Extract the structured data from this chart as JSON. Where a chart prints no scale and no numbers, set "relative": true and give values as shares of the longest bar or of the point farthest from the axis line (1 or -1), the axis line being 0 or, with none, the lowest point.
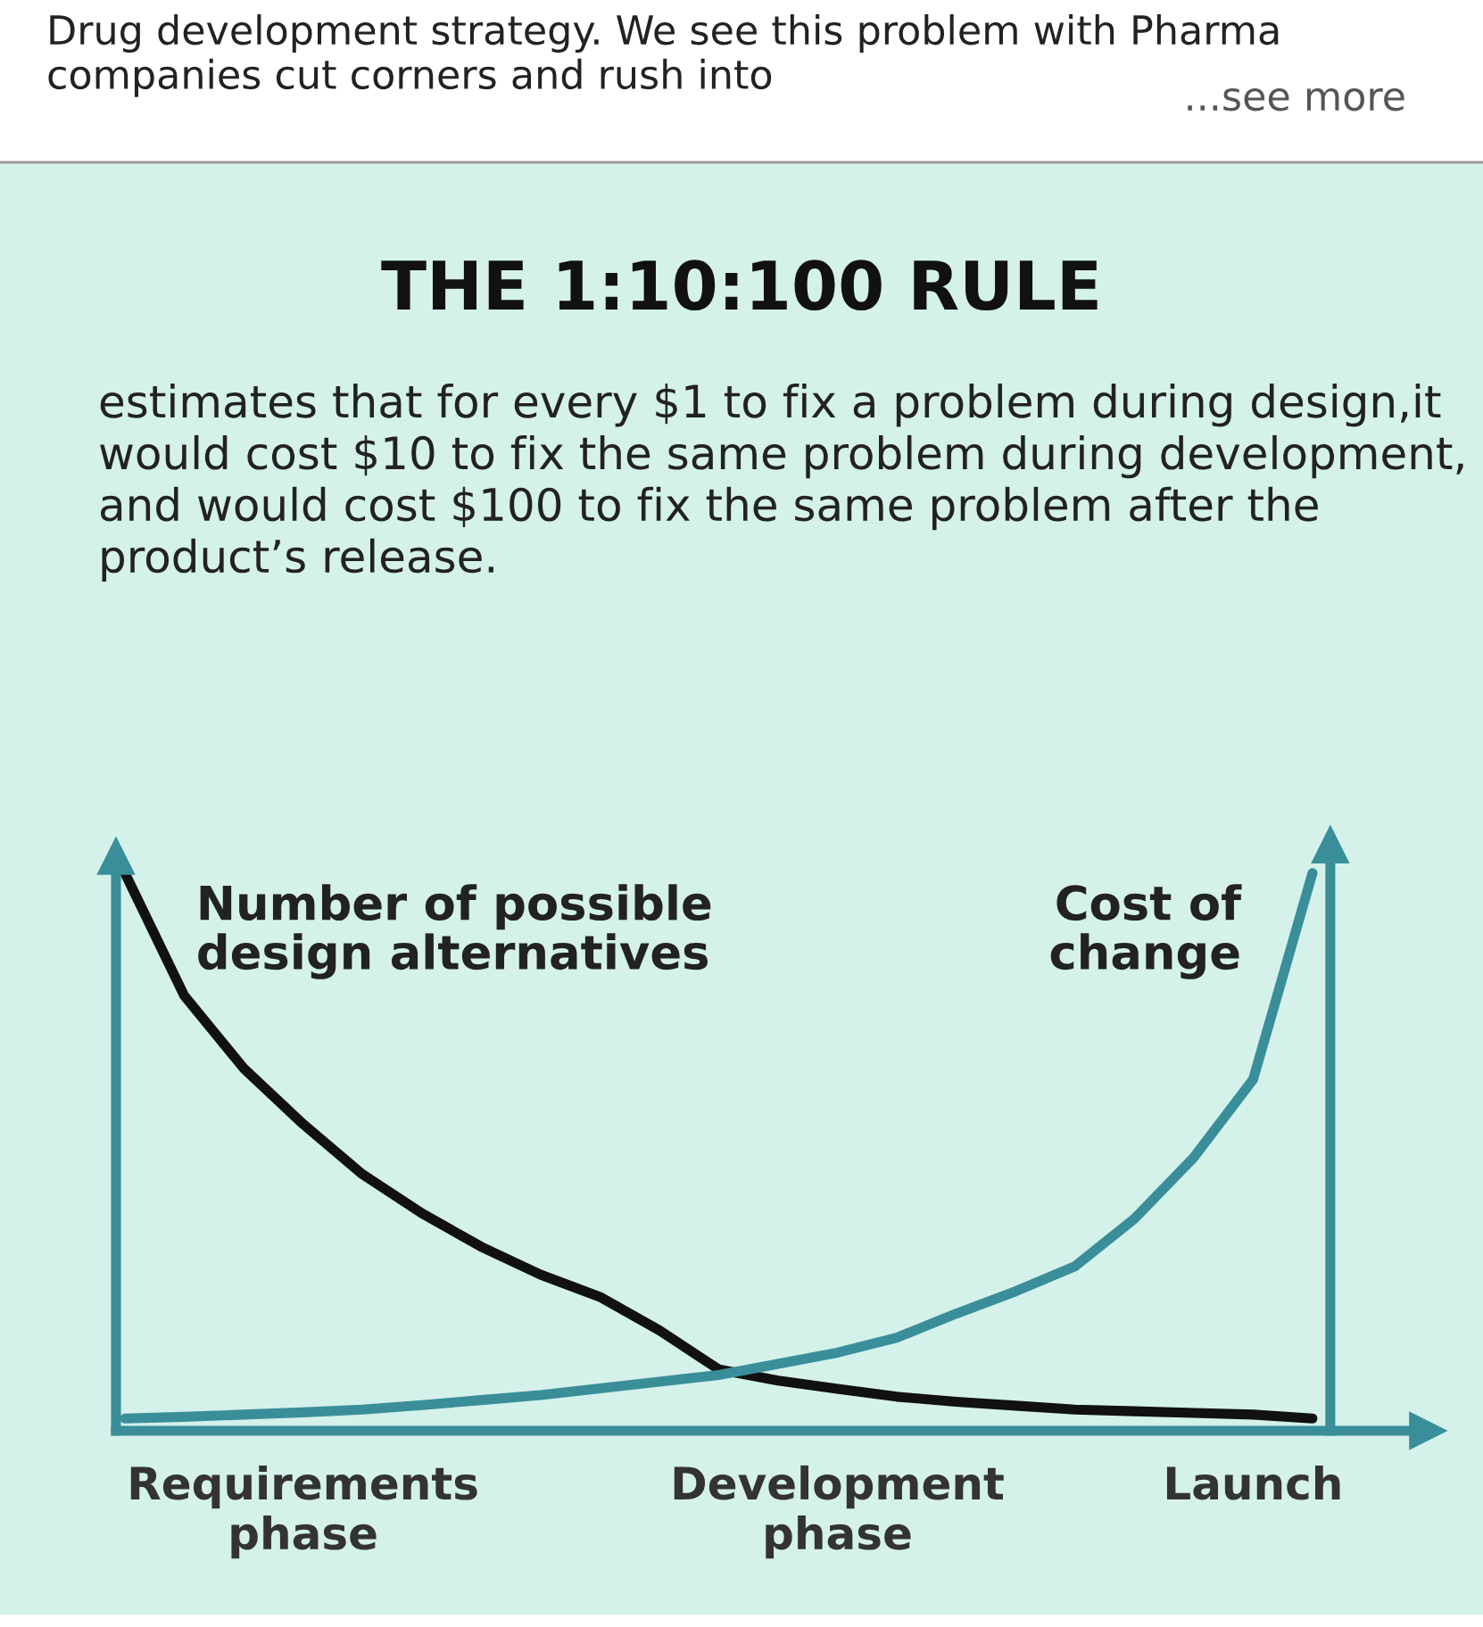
{
  "chart_data": {
    "type": "line",
    "title": "THE 1:10:100 RULE",
    "subtitle": "estimates that for every $1 to fix a problem during design,it would cost $10 to fix the same problem during development, and would cost $100 to fix the same problem after the product’s release.",
    "annotations": [
      "Drug development strategy. We see this problem with Pharma companies cut corners and rush into",
      "...see more"
    ],
    "relative": true,
    "categories": [
      null,
      null,
      null,
      "Requirements\nphase",
      null,
      null,
      null,
      null,
      null,
      null,
      null,
      null,
      "Development\nphase",
      null,
      null,
      null,
      null,
      null,
      null,
      "Launch",
      null
    ],
    "tick_labels": "x",
    "series": [
      {
        "name": "Number of possible\ndesign alternatives",
        "color": "#111111",
        "values": [
          1.0,
          0.78,
          0.65,
          0.55,
          0.46,
          0.39,
          0.33,
          0.28,
          0.24,
          0.18,
          0.11,
          0.09,
          0.075,
          0.061,
          0.052,
          0.045,
          0.038,
          0.035,
          0.032,
          0.029,
          0.022
        ]
      },
      {
        "name": "Cost of\nchange",
        "color": "#3a8e9a",
        "values": [
          0.022,
          0.025,
          0.029,
          0.033,
          0.038,
          0.046,
          0.055,
          0.064,
          0.076,
          0.088,
          0.1,
          0.12,
          0.14,
          0.167,
          0.21,
          0.25,
          0.295,
          0.38,
          0.49,
          0.63,
          1.0
        ]
      }
    ]
  }
}
